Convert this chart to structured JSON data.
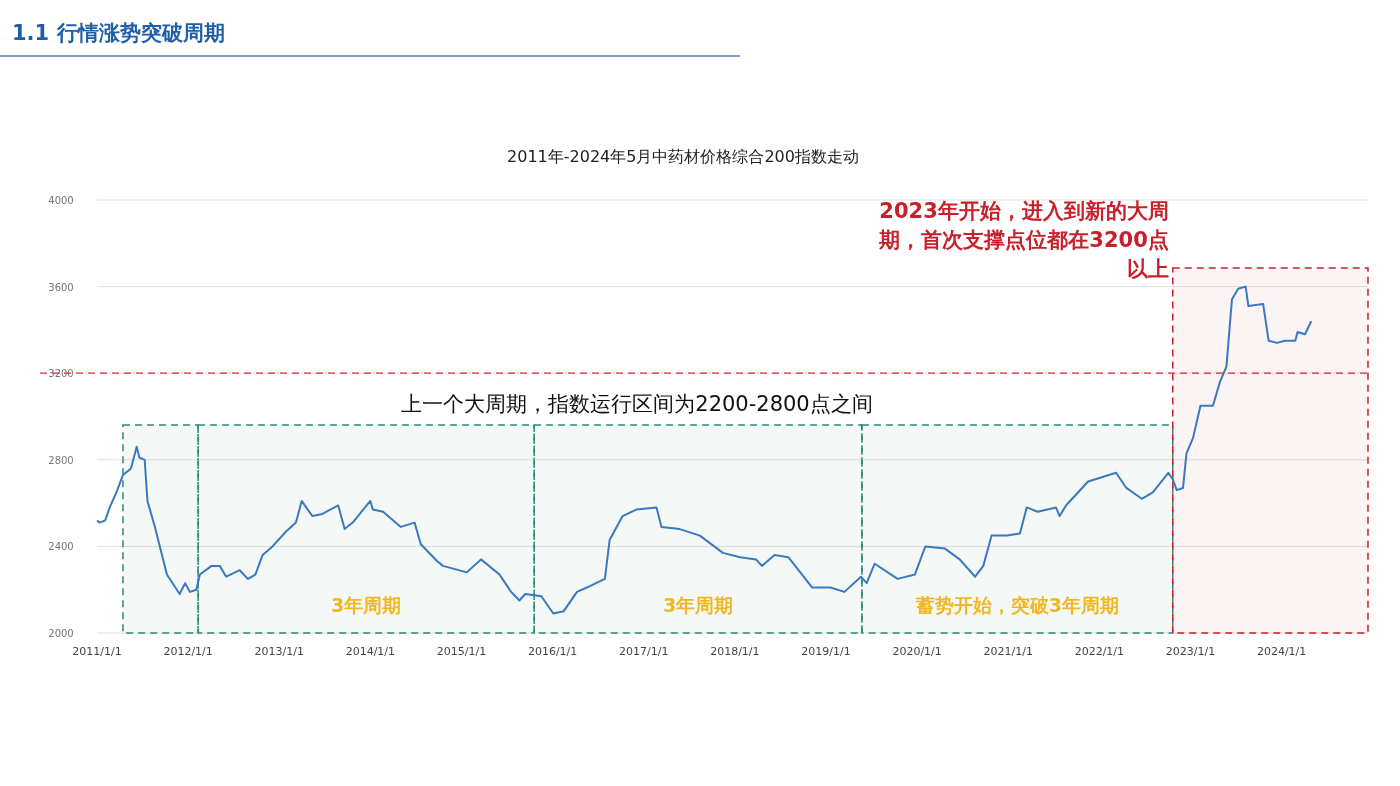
{
  "chart_data": {
    "type": "line",
    "title": "1.1  行情涨势突破周期",
    "subtitle": "2011年-2024年5月中药材价格综合200指数走动",
    "x": [
      "2011-01-01",
      "2011-01-11",
      "2011-02-03",
      "2011-02-21",
      "2011-03-20",
      "2011-04-15",
      "2011-05-17",
      "2011-06-09",
      "2011-06-20",
      "2011-07-11",
      "2011-07-22",
      "2011-08-21",
      "2011-10-08",
      "2011-11-28",
      "2011-12-20",
      "2012-01-08",
      "2012-02-03",
      "2012-02-17",
      "2012-04-04",
      "2012-05-07",
      "2012-06-02",
      "2012-07-26",
      "2012-08-28",
      "2012-09-27",
      "2012-10-26",
      "2012-12-05",
      "2013-01-29",
      "2013-03-09",
      "2013-04-01",
      "2013-04-19",
      "2013-05-14",
      "2013-06-23",
      "2013-08-25",
      "2013-09-20",
      "2013-10-22",
      "2014-01-01",
      "2014-01-11",
      "2014-02-21",
      "2014-05-03",
      "2014-06-27",
      "2014-07-22",
      "2014-09-27",
      "2014-10-19",
      "2015-01-22",
      "2015-03-20",
      "2015-06-02",
      "2015-07-19",
      "2015-08-21",
      "2015-09-13",
      "2015-11-17",
      "2016-01-04",
      "2016-02-14",
      "2016-04-08",
      "2016-05-17",
      "2016-07-29",
      "2016-08-17",
      "2016-10-08",
      "2016-12-02",
      "2017-02-21",
      "2017-03-13",
      "2017-05-25",
      "2017-08-14",
      "2017-11-14",
      "2018-01-22",
      "2018-03-27",
      "2018-04-19",
      "2018-06-09",
      "2018-08-03",
      "2018-11-07",
      "2019-01-19",
      "2019-03-16",
      "2019-05-21",
      "2019-06-13",
      "2019-07-15",
      "2019-10-15",
      "2019-12-23",
      "2020-02-03",
      "2020-04-22",
      "2020-06-20",
      "2020-08-21",
      "2020-09-23",
      "2020-10-26",
      "2020-12-27",
      "2021-02-17",
      "2021-03-16",
      "2021-04-29",
      "2021-07-11",
      "2021-07-26",
      "2021-08-21",
      "2021-11-17",
      "2022-03-09",
      "2022-04-19",
      "2022-06-20",
      "2022-08-03",
      "2022-10-04",
      "2022-10-22",
      "2022-11-07",
      "2022-12-02",
      "2022-12-16",
      "2023-01-11",
      "2023-02-10",
      "2023-04-01",
      "2023-04-29",
      "2023-05-25",
      "2023-06-16",
      "2023-07-11",
      "2023-08-10",
      "2023-08-21",
      "2023-10-19",
      "2023-11-10",
      "2023-12-13",
      "2024-01-15",
      "2024-02-25",
      "2024-03-05",
      "2024-04-04",
      "2024-04-29"
    ],
    "series": [
      {
        "color": "#3a78c0",
        "values": [
          2520,
          2510,
          2520,
          2580,
          2650,
          2730,
          2760,
          2860,
          2810,
          2800,
          2610,
          2490,
          2270,
          2180,
          2230,
          2190,
          2200,
          2270,
          2310,
          2310,
          2260,
          2290,
          2250,
          2270,
          2360,
          2400,
          2470,
          2510,
          2610,
          2580,
          2540,
          2550,
          2590,
          2480,
          2510,
          2610,
          2570,
          2560,
          2490,
          2510,
          2410,
          2330,
          2310,
          2280,
          2340,
          2270,
          2190,
          2150,
          2180,
          2170,
          2090,
          2100,
          2190,
          2210,
          2250,
          2430,
          2540,
          2570,
          2580,
          2490,
          2480,
          2450,
          2370,
          2350,
          2340,
          2310,
          2360,
          2350,
          2210,
          2210,
          2190,
          2260,
          2230,
          2320,
          2250,
          2270,
          2400,
          2390,
          2340,
          2260,
          2310,
          2450,
          2450,
          2460,
          2580,
          2560,
          2580,
          2540,
          2590,
          2700,
          2740,
          2670,
          2620,
          2650,
          2740,
          2710,
          2660,
          2670,
          2830,
          2900,
          3050,
          3050,
          3160,
          3230,
          3540,
          3590,
          3600,
          3510,
          3520,
          3350,
          3340,
          3350,
          3350,
          3390,
          3380,
          3440
        ]
      }
    ],
    "xlim": [
      "2011-01-01",
      "2024-12-13"
    ],
    "xticks": [
      {
        "value": "2011-01-01",
        "label": "2011/1/1"
      },
      {
        "value": "2012-01-01",
        "label": "2012/1/1"
      },
      {
        "value": "2013-01-01",
        "label": "2013/1/1"
      },
      {
        "value": "2014-01-01",
        "label": "2014/1/1"
      },
      {
        "value": "2015-01-01",
        "label": "2015/1/1"
      },
      {
        "value": "2016-01-01",
        "label": "2016/1/1"
      },
      {
        "value": "2017-01-01",
        "label": "2017/1/1"
      },
      {
        "value": "2018-01-01",
        "label": "2018/1/1"
      },
      {
        "value": "2019-01-01",
        "label": "2019/1/1"
      },
      {
        "value": "2020-01-01",
        "label": "2020/1/1"
      },
      {
        "value": "2021-01-01",
        "label": "2021/1/1"
      },
      {
        "value": "2022-01-01",
        "label": "2022/1/1"
      },
      {
        "value": "2023-01-01",
        "label": "2023/1/1"
      },
      {
        "value": "2024-01-01",
        "label": "2024/1/1"
      }
    ],
    "ylim": [
      2000,
      4000
    ],
    "yticks": [
      2000,
      2400,
      2800,
      3200,
      3600,
      4000
    ],
    "grid": "y",
    "ref_lines": [
      {
        "axis": "y",
        "value": 3200,
        "color": "#d03030",
        "line_style": "dashed"
      }
    ],
    "bands": [
      {
        "axis": "x",
        "from": "2011-04-15",
        "to": "2012-02-10",
        "color": "#2a8a7a"
      },
      {
        "axis": "x",
        "from": "2012-02-10",
        "to": "2015-10-19",
        "label": "3年周期",
        "color": "#2a8a7a"
      },
      {
        "axis": "x",
        "from": "2015-10-19",
        "to": "2019-05-25",
        "label": "3年周期",
        "color": "#2a8a7a"
      },
      {
        "axis": "x",
        "from": "2019-05-25",
        "to": "2022-10-22",
        "label": "蓄势开始，突破3年周期",
        "color": "#2a8a7a"
      },
      {
        "axis": "x",
        "from": "2022-10-22",
        "to": "2024-12-13",
        "label": "2023年开始，进入到新的大周期，首次支撑点位都在3200点以上",
        "color": "#c8202a"
      }
    ],
    "annotations": [
      "上一个大周期，指数运行区间为2200-2800点之间"
    ]
  }
}
